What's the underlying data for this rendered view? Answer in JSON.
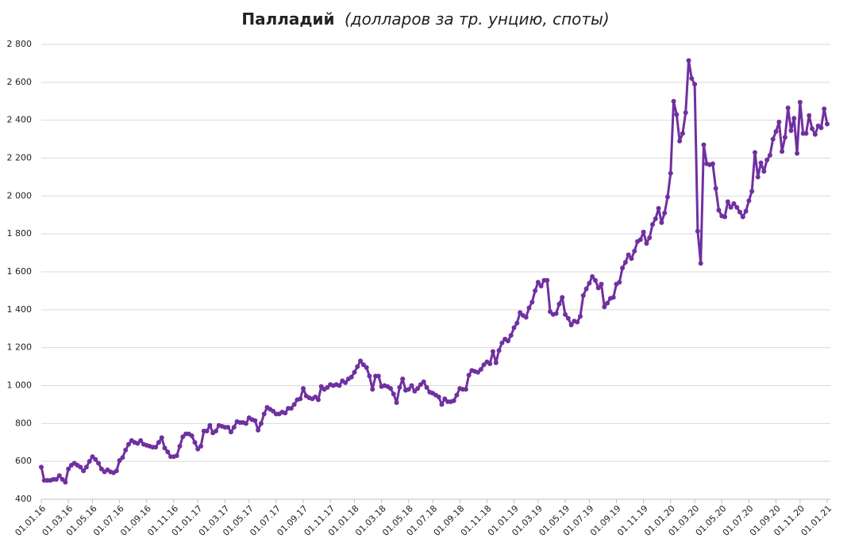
{
  "chart_data": {
    "type": "line",
    "title": "Палладий",
    "subtitle": "(долларов за тр. унцию, споты)",
    "categories": [
      "01.01.16",
      null,
      null,
      null,
      null,
      null,
      null,
      null,
      null,
      "01.03.16",
      null,
      null,
      null,
      null,
      null,
      null,
      null,
      "01.05.16",
      null,
      null,
      null,
      null,
      null,
      null,
      null,
      null,
      "01.07.16",
      null,
      null,
      null,
      null,
      null,
      null,
      null,
      null,
      "01.09.16",
      null,
      null,
      null,
      null,
      null,
      null,
      null,
      null,
      "01.11.16",
      null,
      null,
      null,
      null,
      null,
      null,
      null,
      "01.01.17",
      null,
      null,
      null,
      null,
      null,
      null,
      null,
      null,
      "01.03.17",
      null,
      null,
      null,
      null,
      null,
      null,
      null,
      "01.05.17",
      null,
      null,
      null,
      null,
      null,
      null,
      null,
      null,
      "01.07.17",
      null,
      null,
      null,
      null,
      null,
      null,
      null,
      null,
      "01.09.17",
      null,
      null,
      null,
      null,
      null,
      null,
      null,
      null,
      "01.11.17",
      null,
      null,
      null,
      null,
      null,
      null,
      null,
      "01.01.18",
      null,
      null,
      null,
      null,
      null,
      null,
      null,
      null,
      "01.03.18",
      null,
      null,
      null,
      null,
      null,
      null,
      null,
      null,
      "01.05.18",
      null,
      null,
      null,
      null,
      null,
      null,
      null,
      "01.07.18",
      null,
      null,
      null,
      null,
      null,
      null,
      null,
      null,
      "01.09.18",
      null,
      null,
      null,
      null,
      null,
      null,
      null,
      null,
      "01.11.18",
      null,
      null,
      null,
      null,
      null,
      null,
      null,
      null,
      "01.01.19",
      null,
      null,
      null,
      null,
      null,
      null,
      null,
      "01.03.19",
      null,
      null,
      null,
      null,
      null,
      null,
      null,
      null,
      "01.05.19",
      null,
      null,
      null,
      null,
      null,
      null,
      null,
      "01.07.19",
      null,
      null,
      null,
      null,
      null,
      null,
      null,
      null,
      "01.09.19",
      null,
      null,
      null,
      null,
      null,
      null,
      null,
      null,
      "01.11.19",
      null,
      null,
      null,
      null,
      null,
      null,
      null,
      null,
      "01.01.20",
      null,
      null,
      null,
      null,
      null,
      null,
      null,
      "01.03.20",
      null,
      null,
      null,
      null,
      null,
      null,
      null,
      null,
      "01.05.20",
      null,
      null,
      null,
      null,
      null,
      null,
      null,
      null,
      "01.07.20",
      null,
      null,
      null,
      null,
      null,
      null,
      null,
      null,
      "01.09.20",
      null,
      null,
      null,
      null,
      null,
      null,
      null,
      "01.11.20",
      null,
      null,
      null,
      null,
      null,
      null,
      null,
      null,
      "01.01.21"
    ],
    "series": [
      {
        "name": "Палладий",
        "color": "#7030a0",
        "values": [
          570,
          500,
          500,
          500,
          505,
          505,
          525,
          505,
          490,
          560,
          580,
          590,
          580,
          570,
          550,
          570,
          600,
          625,
          610,
          590,
          560,
          545,
          555,
          545,
          540,
          550,
          605,
          620,
          660,
          690,
          710,
          700,
          695,
          710,
          690,
          685,
          680,
          675,
          675,
          700,
          725,
          670,
          650,
          625,
          625,
          630,
          680,
          730,
          745,
          745,
          735,
          700,
          665,
          680,
          760,
          760,
          790,
          750,
          760,
          790,
          785,
          780,
          780,
          755,
          780,
          810,
          805,
          805,
          800,
          830,
          820,
          815,
          765,
          800,
          850,
          885,
          875,
          865,
          850,
          850,
          860,
          855,
          880,
          880,
          900,
          925,
          930,
          985,
          945,
          935,
          930,
          940,
          925,
          995,
          980,
          990,
          1005,
          1000,
          1005,
          1000,
          1025,
          1015,
          1035,
          1045,
          1070,
          1100,
          1130,
          1110,
          1095,
          1050,
          980,
          1050,
          1050,
          995,
          1000,
          995,
          985,
          955,
          910,
          990,
          1035,
          975,
          980,
          1000,
          970,
          985,
          1005,
          1020,
          990,
          965,
          960,
          950,
          940,
          900,
          930,
          915,
          915,
          920,
          950,
          985,
          980,
          980,
          1055,
          1080,
          1075,
          1070,
          1085,
          1110,
          1125,
          1115,
          1180,
          1120,
          1185,
          1225,
          1245,
          1235,
          1265,
          1305,
          1330,
          1385,
          1370,
          1360,
          1410,
          1440,
          1500,
          1545,
          1525,
          1555,
          1555,
          1390,
          1375,
          1380,
          1430,
          1465,
          1375,
          1355,
          1320,
          1340,
          1335,
          1365,
          1475,
          1510,
          1540,
          1575,
          1555,
          1515,
          1535,
          1415,
          1435,
          1460,
          1465,
          1535,
          1545,
          1620,
          1650,
          1690,
          1670,
          1710,
          1760,
          1770,
          1810,
          1750,
          1780,
          1850,
          1880,
          1935,
          1860,
          1910,
          1995,
          2120,
          2500,
          2430,
          2290,
          2330,
          2440,
          2715,
          2620,
          2590,
          1815,
          1645,
          2270,
          2170,
          2165,
          2170,
          2040,
          1925,
          1895,
          1890,
          1970,
          1940,
          1960,
          1940,
          1915,
          1890,
          1920,
          1975,
          2025,
          2230,
          2100,
          2175,
          2130,
          2190,
          2215,
          2300,
          2340,
          2390,
          2235,
          2310,
          2465,
          2345,
          2410,
          2225,
          2495,
          2330,
          2330,
          2425,
          2355,
          2325,
          2370,
          2360,
          2460,
          2380
        ]
      }
    ],
    "ylim": [
      400,
      2800
    ],
    "yticks": [
      400,
      600,
      800,
      {
        "value": 1000,
        "label": "1 000"
      },
      {
        "value": 1200,
        "label": "1 200"
      },
      {
        "value": 1400,
        "label": "1 400"
      },
      {
        "value": 1600,
        "label": "1 600"
      },
      {
        "value": 1800,
        "label": "1 800"
      },
      {
        "value": 2000,
        "label": "2 000"
      },
      {
        "value": 2200,
        "label": "2 200"
      },
      {
        "value": 2400,
        "label": "2 400"
      },
      {
        "value": 2600,
        "label": "2 600"
      },
      {
        "value": 2800,
        "label": "2 800"
      }
    ],
    "grid": true,
    "markers": true
  }
}
